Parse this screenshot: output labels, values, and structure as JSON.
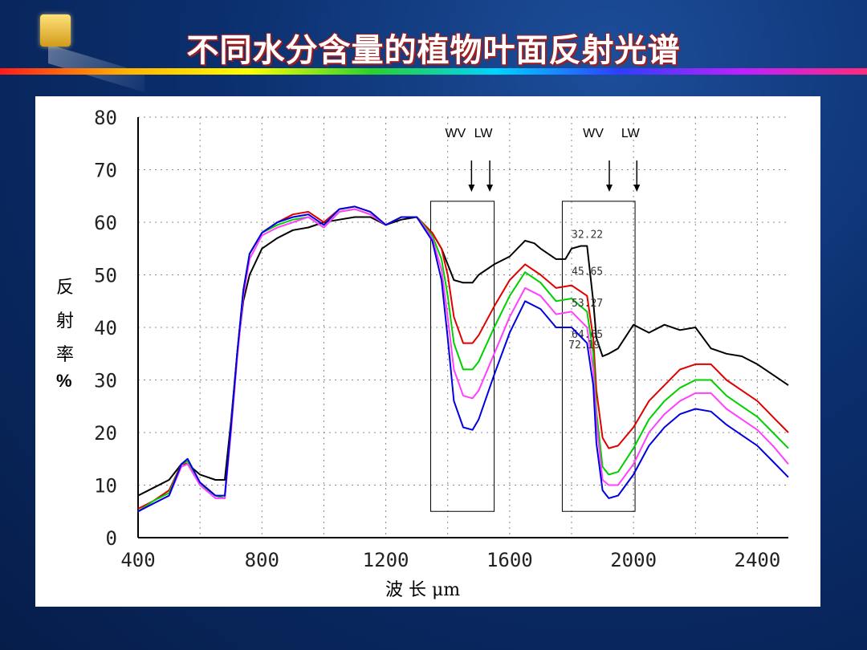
{
  "page": {
    "title": "不同水分含量的植物叶面反射光谱"
  },
  "colors": {
    "title_text": "#ffffff",
    "title_outline": "#9c1f1f",
    "background": "#0b2f6e"
  },
  "chart_data": {
    "type": "line",
    "title": "",
    "xlabel": "波 长 μm",
    "ylabel_chars": [
      "反",
      "射",
      "率",
      "%"
    ],
    "xlim": [
      400,
      2500
    ],
    "ylim": [
      0,
      80
    ],
    "xticks": [
      400,
      800,
      1200,
      1600,
      2000,
      2400
    ],
    "yticks": [
      0,
      10,
      20,
      30,
      40,
      50,
      60,
      70,
      80
    ],
    "grid": true,
    "band_markers": [
      {
        "label": "WV",
        "x": 1425
      },
      {
        "label": "LW",
        "x": 1515
      },
      {
        "label": "WV",
        "x": 1870
      },
      {
        "label": "LW",
        "x": 1990
      }
    ],
    "highlight_boxes": [
      {
        "x0": 1345,
        "x1": 1550,
        "y0": 5,
        "y1": 64
      },
      {
        "x0": 1770,
        "x1": 2005,
        "y0": 5,
        "y1": 64
      }
    ],
    "series": [
      {
        "name": "32.22",
        "color": "#000000",
        "label_at": {
          "x": 1800,
          "y": 57
        },
        "x": [
          400,
          450,
          500,
          540,
          560,
          600,
          650,
          680,
          700,
          720,
          740,
          760,
          800,
          850,
          900,
          950,
          1000,
          1050,
          1100,
          1150,
          1200,
          1250,
          1300,
          1350,
          1380,
          1400,
          1420,
          1450,
          1480,
          1500,
          1550,
          1600,
          1650,
          1680,
          1700,
          1750,
          1780,
          1800,
          1830,
          1850,
          1870,
          1880,
          1900,
          1920,
          1950,
          2000,
          2050,
          2100,
          2150,
          2200,
          2250,
          2300,
          2350,
          2400,
          2450,
          2500
        ],
        "y": [
          8,
          9.5,
          11,
          14,
          14,
          12,
          11,
          11,
          22,
          35,
          45,
          50,
          55,
          57,
          58.5,
          59,
          60,
          60.5,
          61,
          61,
          59.5,
          60.5,
          61,
          58,
          55,
          52,
          49,
          48.5,
          48.5,
          50,
          52,
          53.5,
          56.5,
          56,
          55,
          53,
          53,
          55,
          55.5,
          55.5,
          45,
          38,
          34.5,
          35,
          36,
          40.5,
          39,
          40.5,
          39.5,
          40,
          36,
          35,
          34.5,
          33,
          31,
          29
        ]
      },
      {
        "name": "45.65",
        "color": "#e00000",
        "label_at": {
          "x": 1800,
          "y": 50
        },
        "x": [
          400,
          450,
          500,
          540,
          560,
          600,
          650,
          680,
          700,
          720,
          740,
          760,
          800,
          850,
          900,
          950,
          1000,
          1050,
          1100,
          1150,
          1200,
          1250,
          1300,
          1350,
          1380,
          1400,
          1420,
          1450,
          1480,
          1500,
          1550,
          1600,
          1650,
          1700,
          1750,
          1800,
          1850,
          1870,
          1880,
          1900,
          1920,
          1950,
          2000,
          2050,
          2100,
          2150,
          2200,
          2250,
          2300,
          2350,
          2400,
          2450,
          2500
        ],
        "y": [
          5.5,
          7,
          9,
          14,
          14,
          10.5,
          8,
          7.5,
          21,
          35,
          47,
          54,
          58,
          60,
          61.5,
          62,
          60,
          62.5,
          63,
          62,
          59.5,
          61,
          61,
          58,
          55,
          50,
          42,
          37,
          37,
          38.5,
          44,
          49,
          52,
          50,
          47.5,
          48,
          46,
          38,
          28,
          19,
          17,
          17.5,
          21,
          26,
          29,
          32,
          33,
          33,
          30,
          28,
          26,
          23,
          20
        ]
      },
      {
        "name": "53.27",
        "color": "#00d000",
        "label_at": {
          "x": 1800,
          "y": 44
        },
        "x": [
          400,
          450,
          500,
          540,
          560,
          600,
          650,
          680,
          700,
          720,
          740,
          760,
          800,
          850,
          900,
          950,
          1000,
          1050,
          1100,
          1150,
          1200,
          1250,
          1300,
          1350,
          1380,
          1400,
          1420,
          1450,
          1480,
          1500,
          1550,
          1600,
          1650,
          1700,
          1750,
          1800,
          1850,
          1870,
          1880,
          1900,
          1920,
          1950,
          2000,
          2050,
          2100,
          2150,
          2200,
          2250,
          2300,
          2350,
          2400,
          2450,
          2500
        ],
        "y": [
          5,
          7,
          8.5,
          14,
          14.5,
          10,
          8,
          7.5,
          21,
          35,
          47,
          54,
          58,
          59.5,
          60.5,
          61,
          59,
          62,
          62.5,
          61.5,
          59.5,
          61,
          61,
          57.5,
          53,
          46,
          37,
          32,
          32,
          33.5,
          40,
          46,
          50.5,
          48.5,
          45,
          45.5,
          43,
          35,
          24,
          13.5,
          12,
          12.5,
          17,
          22.5,
          26,
          28.5,
          30,
          30,
          27,
          25,
          23,
          20,
          17
        ]
      },
      {
        "name": "64.65",
        "color": "#ff40ff",
        "label_at": {
          "x": 1800,
          "y": 38
        },
        "x": [
          400,
          450,
          500,
          540,
          560,
          600,
          650,
          680,
          700,
          720,
          740,
          760,
          800,
          850,
          900,
          950,
          1000,
          1050,
          1100,
          1150,
          1200,
          1250,
          1300,
          1350,
          1380,
          1400,
          1420,
          1450,
          1480,
          1500,
          1550,
          1600,
          1650,
          1700,
          1750,
          1800,
          1850,
          1870,
          1880,
          1900,
          1920,
          1950,
          2000,
          2050,
          2100,
          2150,
          2200,
          2250,
          2300,
          2350,
          2400,
          2450,
          2500
        ],
        "y": [
          5,
          6.5,
          8,
          13.5,
          14,
          10,
          7.5,
          7.5,
          20,
          34,
          46,
          53,
          57.5,
          59,
          60,
          61,
          59,
          62,
          62.5,
          61.5,
          59.5,
          61,
          61,
          57,
          51,
          42,
          32,
          27,
          26.5,
          28,
          35,
          42,
          47.5,
          46,
          42.5,
          43,
          40,
          32,
          22,
          11,
          10,
          10,
          14,
          20,
          23.5,
          26,
          27.5,
          27.5,
          24.5,
          22.5,
          20.5,
          17.5,
          14
        ]
      },
      {
        "name": "72.19",
        "color": "#0000e0",
        "label_at": {
          "x": 1790,
          "y": 36
        },
        "x": [
          400,
          450,
          500,
          540,
          560,
          600,
          650,
          680,
          700,
          720,
          740,
          760,
          800,
          850,
          900,
          950,
          1000,
          1050,
          1100,
          1150,
          1200,
          1250,
          1300,
          1350,
          1380,
          1400,
          1420,
          1450,
          1480,
          1500,
          1550,
          1600,
          1650,
          1700,
          1750,
          1800,
          1850,
          1870,
          1880,
          1900,
          1920,
          1950,
          2000,
          2050,
          2100,
          2150,
          2200,
          2250,
          2300,
          2350,
          2400,
          2450,
          2500
        ],
        "y": [
          5,
          6.5,
          8,
          14,
          15,
          10.5,
          8,
          8,
          21,
          35,
          47,
          54,
          58,
          60,
          61,
          61.5,
          59.5,
          62.5,
          63,
          62,
          59.5,
          61,
          61,
          56.5,
          49,
          38,
          26,
          21,
          20.5,
          22.5,
          31,
          39,
          45,
          43.5,
          40,
          40,
          37,
          29,
          18,
          9,
          7.5,
          8,
          12,
          17.5,
          21,
          23.5,
          24.5,
          24,
          21.5,
          19.5,
          17.5,
          14.5,
          11.5
        ]
      }
    ]
  }
}
